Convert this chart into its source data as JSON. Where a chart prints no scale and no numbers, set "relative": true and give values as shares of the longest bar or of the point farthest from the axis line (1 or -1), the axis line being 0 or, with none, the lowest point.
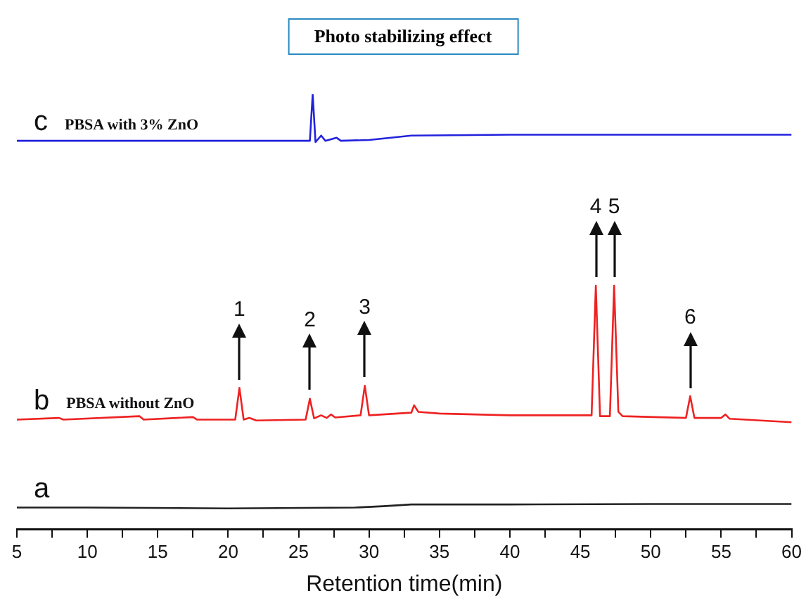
{
  "chart_data": {
    "type": "line",
    "title": "Photo stabilizing effect",
    "xlabel": "Retention time(min)",
    "relative": true,
    "xlim": [
      5,
      60
    ],
    "xticks": [
      5,
      {
        "value": 7.5,
        "label": null
      },
      10,
      {
        "value": 12.5,
        "label": null
      },
      15,
      {
        "value": 17.5,
        "label": null
      },
      20,
      {
        "value": 22.5,
        "label": null
      },
      25,
      {
        "value": 27.5,
        "label": null
      },
      30,
      {
        "value": 32.5,
        "label": null
      },
      35,
      {
        "value": 37.5,
        "label": null
      },
      40,
      {
        "value": 42.5,
        "label": null
      },
      45,
      {
        "value": 47.5,
        "label": null
      },
      50,
      {
        "value": 52.5,
        "label": null
      },
      55,
      {
        "value": 57.5,
        "label": null
      },
      60
    ],
    "tick_labels": "x",
    "grid": false,
    "legend": false,
    "marker": "none",
    "line_style": "solid",
    "series": [
      {
        "name": "a",
        "color": "#222222",
        "x": [
          5,
          10,
          20,
          29,
          31,
          33,
          40,
          50,
          60
        ],
        "values": [
          0.05,
          0.05,
          0.048,
          0.05,
          0.053,
          0.057,
          0.057,
          0.058,
          0.058
        ]
      },
      {
        "name": "b",
        "color": "#ee2222",
        "x": [
          5,
          8,
          8.3,
          13.7,
          14,
          17.5,
          17.8,
          20.5,
          20.8,
          21.1,
          21.5,
          22,
          25.5,
          25.8,
          26.1,
          26.6,
          27,
          27.3,
          27.6,
          29.4,
          29.7,
          30,
          33,
          33.2,
          33.5,
          35,
          40,
          45,
          45.8,
          46.1,
          46.4,
          47.1,
          47.4,
          47.7,
          48,
          52.5,
          52.8,
          53.1,
          55,
          55.3,
          55.6,
          60
        ],
        "values": [
          0.252,
          0.256,
          0.252,
          0.26,
          0.252,
          0.258,
          0.252,
          0.252,
          0.325,
          0.252,
          0.256,
          0.25,
          0.252,
          0.3,
          0.255,
          0.262,
          0.256,
          0.264,
          0.257,
          0.262,
          0.33,
          0.262,
          0.268,
          0.285,
          0.27,
          0.266,
          0.262,
          0.262,
          0.262,
          0.56,
          0.26,
          0.26,
          0.56,
          0.27,
          0.26,
          0.256,
          0.306,
          0.256,
          0.256,
          0.264,
          0.254,
          0.246
        ]
      },
      {
        "name": "c",
        "color": "#2222dd",
        "x": [
          5,
          25.8,
          26,
          26.2,
          26.6,
          26.9,
          27.7,
          28,
          30,
          33,
          40,
          60
        ],
        "values": [
          0.893,
          0.893,
          1,
          0.89,
          0.905,
          0.893,
          0.9,
          0.893,
          0.895,
          0.905,
          0.907,
          0.907
        ]
      }
    ],
    "annotations": [
      "PBSA with 3% ZnO",
      "PBSA without ZnO",
      {
        "text": "1",
        "x": 20.8,
        "y": 0.325
      },
      {
        "text": "2",
        "x": 25.8,
        "y": 0.3
      },
      {
        "text": "3",
        "x": 29.7,
        "y": 0.33
      },
      {
        "text": "4",
        "x": 46.1,
        "y": 0.56
      },
      {
        "text": "5",
        "x": 47.4,
        "y": 0.56
      },
      {
        "text": "6",
        "x": 52.8,
        "y": 0.306
      }
    ]
  }
}
